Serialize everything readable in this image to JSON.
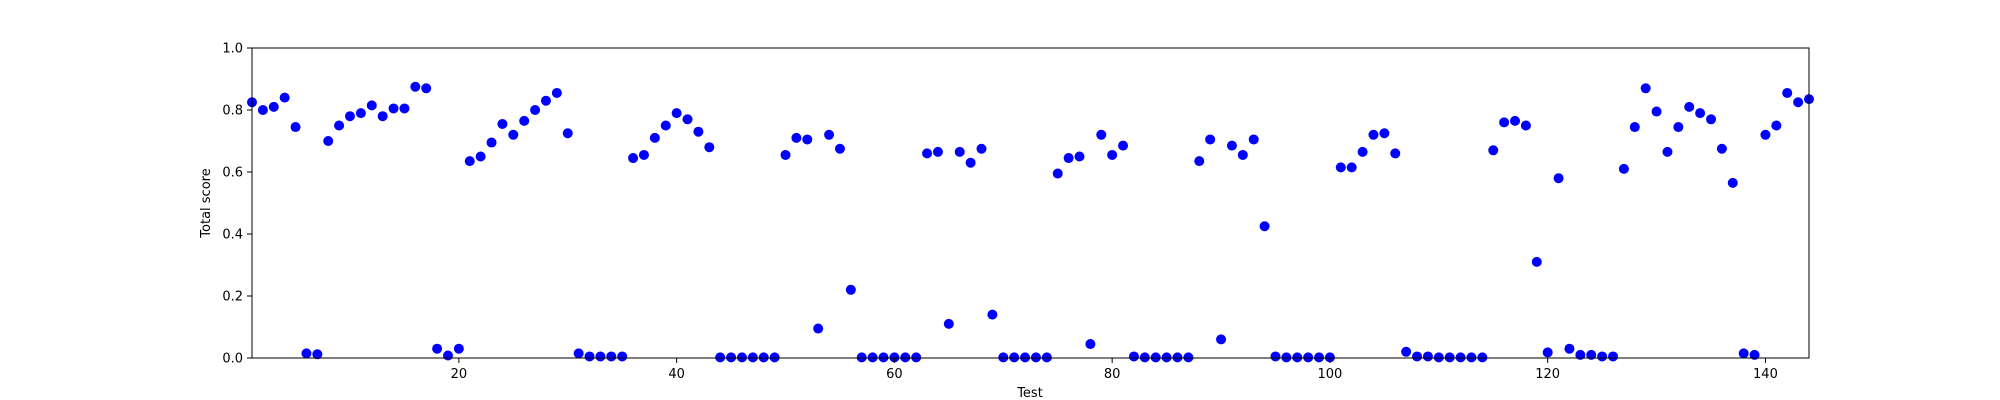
{
  "chart_data": {
    "type": "scatter",
    "xlabel": "Test",
    "ylabel": "Total score",
    "xlim": [
      1,
      144
    ],
    "ylim": [
      0,
      1.0
    ],
    "x_ticks": [
      20,
      40,
      60,
      80,
      100,
      120,
      140
    ],
    "y_ticks": [
      0.0,
      0.2,
      0.4,
      0.6,
      0.8,
      1.0
    ],
    "y_tick_labels": [
      "0.0",
      "0.2",
      "0.4",
      "0.6",
      "0.8",
      "1.0"
    ],
    "grid": false,
    "point_color": "#0000ff",
    "series": [
      {
        "points": [
          [
            1,
            0.825
          ],
          [
            2,
            0.8
          ],
          [
            3,
            0.81
          ],
          [
            4,
            0.84
          ],
          [
            5,
            0.745
          ],
          [
            6,
            0.015
          ],
          [
            7,
            0.012
          ],
          [
            8,
            0.7
          ],
          [
            9,
            0.75
          ],
          [
            10,
            0.78
          ],
          [
            11,
            0.79
          ],
          [
            12,
            0.815
          ],
          [
            13,
            0.78
          ],
          [
            14,
            0.805
          ],
          [
            15,
            0.805
          ],
          [
            16,
            0.875
          ],
          [
            17,
            0.87
          ],
          [
            18,
            0.03
          ],
          [
            19,
            0.008
          ],
          [
            20,
            0.03
          ],
          [
            21,
            0.635
          ],
          [
            22,
            0.65
          ],
          [
            23,
            0.695
          ],
          [
            24,
            0.755
          ],
          [
            25,
            0.72
          ],
          [
            26,
            0.765
          ],
          [
            27,
            0.8
          ],
          [
            28,
            0.83
          ],
          [
            29,
            0.855
          ],
          [
            30,
            0.725
          ],
          [
            31,
            0.015
          ],
          [
            32,
            0.005
          ],
          [
            33,
            0.005
          ],
          [
            34,
            0.005
          ],
          [
            35,
            0.005
          ],
          [
            36,
            0.645
          ],
          [
            37,
            0.655
          ],
          [
            38,
            0.71
          ],
          [
            39,
            0.75
          ],
          [
            40,
            0.79
          ],
          [
            41,
            0.77
          ],
          [
            42,
            0.73
          ],
          [
            43,
            0.68
          ],
          [
            44,
            0.002
          ],
          [
            45,
            0.002
          ],
          [
            46,
            0.002
          ],
          [
            47,
            0.002
          ],
          [
            48,
            0.002
          ],
          [
            49,
            0.002
          ],
          [
            50,
            0.655
          ],
          [
            51,
            0.71
          ],
          [
            52,
            0.705
          ],
          [
            53,
            0.095
          ],
          [
            54,
            0.72
          ],
          [
            55,
            0.675
          ],
          [
            56,
            0.22
          ],
          [
            57,
            0.002
          ],
          [
            58,
            0.002
          ],
          [
            59,
            0.002
          ],
          [
            60,
            0.002
          ],
          [
            61,
            0.002
          ],
          [
            62,
            0.002
          ],
          [
            63,
            0.66
          ],
          [
            64,
            0.665
          ],
          [
            65,
            0.11
          ],
          [
            66,
            0.665
          ],
          [
            67,
            0.63
          ],
          [
            68,
            0.675
          ],
          [
            69,
            0.14
          ],
          [
            70,
            0.002
          ],
          [
            71,
            0.002
          ],
          [
            72,
            0.002
          ],
          [
            73,
            0.002
          ],
          [
            74,
            0.002
          ],
          [
            75,
            0.595
          ],
          [
            76,
            0.645
          ],
          [
            77,
            0.65
          ],
          [
            78,
            0.045
          ],
          [
            79,
            0.72
          ],
          [
            80,
            0.655
          ],
          [
            81,
            0.685
          ],
          [
            82,
            0.005
          ],
          [
            83,
            0.002
          ],
          [
            84,
            0.002
          ],
          [
            85,
            0.002
          ],
          [
            86,
            0.002
          ],
          [
            87,
            0.002
          ],
          [
            88,
            0.635
          ],
          [
            89,
            0.705
          ],
          [
            90,
            0.06
          ],
          [
            91,
            0.685
          ],
          [
            92,
            0.655
          ],
          [
            93,
            0.705
          ],
          [
            94,
            0.425
          ],
          [
            95,
            0.005
          ],
          [
            96,
            0.002
          ],
          [
            97,
            0.002
          ],
          [
            98,
            0.002
          ],
          [
            99,
            0.002
          ],
          [
            100,
            0.002
          ],
          [
            101,
            0.615
          ],
          [
            102,
            0.615
          ],
          [
            103,
            0.665
          ],
          [
            104,
            0.72
          ],
          [
            105,
            0.725
          ],
          [
            106,
            0.66
          ],
          [
            107,
            0.02
          ],
          [
            108,
            0.005
          ],
          [
            109,
            0.005
          ],
          [
            110,
            0.002
          ],
          [
            111,
            0.002
          ],
          [
            112,
            0.002
          ],
          [
            113,
            0.002
          ],
          [
            114,
            0.002
          ],
          [
            115,
            0.67
          ],
          [
            116,
            0.76
          ],
          [
            117,
            0.765
          ],
          [
            118,
            0.75
          ],
          [
            119,
            0.31
          ],
          [
            120,
            0.018
          ],
          [
            121,
            0.58
          ],
          [
            122,
            0.03
          ],
          [
            123,
            0.01
          ],
          [
            124,
            0.01
          ],
          [
            125,
            0.005
          ],
          [
            126,
            0.005
          ],
          [
            127,
            0.61
          ],
          [
            128,
            0.745
          ],
          [
            129,
            0.87
          ],
          [
            130,
            0.795
          ],
          [
            131,
            0.665
          ],
          [
            132,
            0.745
          ],
          [
            133,
            0.81
          ],
          [
            134,
            0.79
          ],
          [
            135,
            0.77
          ],
          [
            136,
            0.675
          ],
          [
            137,
            0.565
          ],
          [
            138,
            0.015
          ],
          [
            139,
            0.01
          ],
          [
            140,
            0.72
          ],
          [
            141,
            0.75
          ],
          [
            142,
            0.855
          ],
          [
            143,
            0.825
          ],
          [
            144,
            0.835
          ]
        ]
      }
    ]
  }
}
